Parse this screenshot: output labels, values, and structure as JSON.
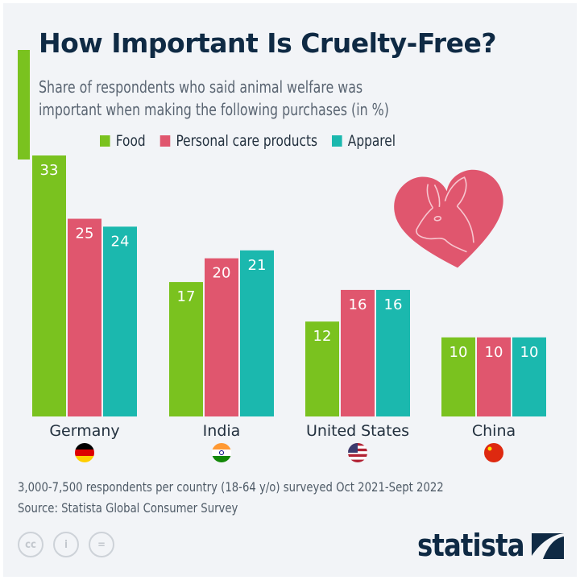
{
  "header": {
    "title": "How Important Is Cruelty-Free?",
    "subtitle_line1": "Share of respondents who said animal welfare was",
    "subtitle_line2": "important when making the following purchases (in %)"
  },
  "chart_data": {
    "type": "bar",
    "title": "How Important Is Cruelty-Free?",
    "subtitle": "Share of respondents who said animal welfare was important when making the following purchases (in %)",
    "categories": [
      "Germany",
      "India",
      "United States",
      "China"
    ],
    "series": [
      {
        "name": "Food",
        "color": "#7ac21f",
        "values": [
          33,
          17,
          12,
          10
        ]
      },
      {
        "name": "Personal care products",
        "color": "#e0566e",
        "values": [
          25,
          20,
          16,
          10
        ]
      },
      {
        "name": "Apparel",
        "color": "#1bb8ae",
        "values": [
          24,
          21,
          16,
          10
        ]
      }
    ],
    "ylim": [
      0,
      33
    ],
    "grid": false,
    "data_labels": true,
    "legend_position": "top",
    "flags": [
      "germany-flag",
      "india-flag",
      "us-flag",
      "china-flag"
    ]
  },
  "footer": {
    "note": "3,000-7,500 respondents per country (18-64 y/o) surveyed Oct 2021-Sept 2022",
    "source": "Source: Statista Global Consumer Survey",
    "logo": "statista",
    "license_icons": [
      "cc-icon",
      "by-icon",
      "nd-icon"
    ]
  }
}
